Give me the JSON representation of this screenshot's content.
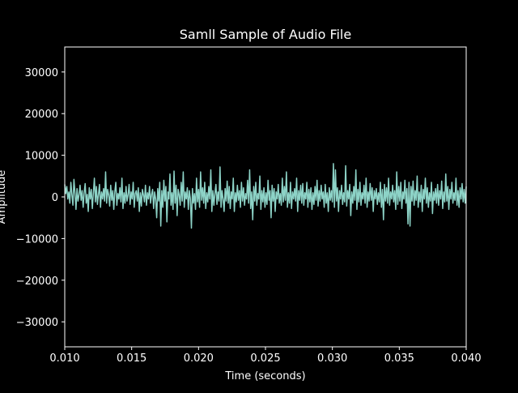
{
  "chart_data": {
    "type": "line",
    "title": "Samll Sample of Audio File",
    "xlabel": "Time (seconds)",
    "ylabel": "Amplitude",
    "xlim": [
      0.01,
      0.04
    ],
    "ylim": [
      -36000,
      36000
    ],
    "x_ticks": [
      0.01,
      0.015,
      0.02,
      0.025,
      0.03,
      0.035,
      0.04
    ],
    "x_tick_labels": [
      "0.010",
      "0.015",
      "0.020",
      "0.025",
      "0.030",
      "0.035",
      "0.040"
    ],
    "y_ticks": [
      30000,
      20000,
      10000,
      0,
      -10000,
      -20000,
      -30000
    ],
    "y_tick_labels": [
      "30000",
      "20000",
      "10000",
      "0",
      "−10000",
      "−20000",
      "−30000"
    ],
    "grid": false,
    "background_color": "#000000",
    "line_color": "#8dd3c7",
    "series": [
      {
        "x_start": 0.01,
        "x_end": 0.04,
        "values": [
          3000,
          800,
          2500,
          -500,
          1200,
          -1500,
          3500,
          500,
          -2000,
          4200,
          1000,
          -3000,
          2000,
          -1000,
          500,
          2800,
          -800,
          1500,
          -2500,
          1000,
          3200,
          -1500,
          600,
          -3500,
          2200,
          -500,
          1800,
          -2800,
          900,
          4500,
          -1200,
          2500,
          -1800,
          600,
          3000,
          -2500,
          1200,
          -500,
          2000,
          -1000,
          6000,
          -1500,
          1800,
          500,
          -2200,
          2800,
          -800,
          1500,
          -3000,
          1200,
          3500,
          -2000,
          800,
          -500,
          2200,
          -1200,
          4500,
          -2800,
          1000,
          -1500,
          2500,
          -1000,
          500,
          3000,
          -1800,
          1200,
          -500,
          3500,
          -2500,
          800,
          1500,
          -1000,
          2200,
          -3500,
          1000,
          -2200,
          1800,
          500,
          -1200,
          2800,
          -2000,
          1000,
          -500,
          2500,
          -1500,
          600,
          1800,
          -2800,
          1200,
          -500,
          -5000,
          2000,
          -1000,
          3500,
          -7000,
          1500,
          -2500,
          4000,
          -1000,
          2500,
          -6000,
          1200,
          -500,
          5500,
          -2000,
          1000,
          -3000,
          6200,
          -1500,
          2800,
          -4500,
          1800,
          500,
          -2000,
          3500,
          -1000,
          6000,
          -2500,
          1200,
          -500,
          2200,
          -3000,
          1500,
          -500,
          -7500,
          2000,
          -1500,
          800,
          -3000,
          4500,
          -1200,
          1800,
          -2500,
          6000,
          -800,
          2200,
          -1500,
          3500,
          -2800,
          1000,
          -1200,
          2500,
          -500,
          6500,
          -3500,
          1500,
          -2000,
          800,
          3000,
          -1800,
          1200,
          -1000,
          7200,
          -2500,
          1500,
          -500,
          -3500,
          2000,
          -1000,
          3800,
          -1500,
          2500,
          -2800,
          1200,
          -500,
          4500,
          -3500,
          1000,
          -1200,
          2800,
          -800,
          1500,
          -2500,
          3500,
          -1000,
          2200,
          -2000,
          800,
          -500,
          4000,
          -1500,
          6500,
          -2800,
          1200,
          -5500,
          2500,
          -1000,
          3500,
          -2000,
          800,
          -500,
          5000,
          -3000,
          1500,
          -1200,
          2200,
          -2500,
          1000,
          -1800,
          4000,
          -800,
          1500,
          -5000,
          2800,
          -1000,
          2000,
          -3500,
          1200,
          -500,
          3000,
          -1500,
          800,
          -2000,
          4500,
          -1200,
          2500,
          -800,
          6000,
          -2500,
          1000,
          -1500,
          3500,
          -2800,
          1200,
          -500,
          2000,
          -1000,
          4500,
          -3500,
          1500,
          -800,
          2800,
          -1500,
          3200,
          -2000,
          1000,
          -500,
          3500,
          -2500,
          1800,
          -1200,
          2200,
          -3000,
          1000,
          -1800,
          2500,
          -800,
          4000,
          -2200,
          1500,
          -1000,
          2800,
          -500,
          1200,
          -2500,
          3000,
          -1500,
          1000,
          -3500,
          2200,
          -800,
          1500,
          -1200,
          8000,
          -2500,
          6500,
          -1000,
          2200,
          -3500,
          1500,
          -500,
          2800,
          -1800,
          1000,
          -1200,
          7500,
          -2200,
          1500,
          -500,
          3000,
          -4500,
          1200,
          -1500,
          2500,
          -800,
          6500,
          -3000,
          1800,
          -1200,
          3500,
          -2000,
          1000,
          -500,
          2800,
          -1500,
          4500,
          -2500,
          1200,
          -1000,
          3200,
          -800,
          2200,
          -3500,
          1500,
          -500,
          2000,
          -1800,
          1000,
          -1200,
          3500,
          -2500,
          1800,
          -5500,
          3000,
          -1000,
          2200,
          -1500,
          4500,
          -2000,
          1200,
          -500,
          2800,
          -1200,
          1500,
          -3000,
          6000,
          -1800,
          2500,
          -1000,
          3500,
          -2800,
          1200,
          -500,
          4000,
          -1500,
          2000,
          -6500,
          3500,
          -7000,
          2500,
          -1000,
          3800,
          -2000,
          1500,
          -800,
          5000,
          -2500,
          1200,
          -1200,
          2800,
          -3500,
          1800,
          -500,
          4500,
          -1500,
          2200,
          -2500,
          1000,
          -1000,
          3500,
          -4000,
          1200,
          -800,
          2000,
          -1500,
          3000,
          -2000,
          1500,
          -500,
          3800,
          -2800,
          1200,
          -1200,
          5500,
          -1000,
          2500,
          -3000,
          1800,
          -500,
          3500,
          -1500,
          1000,
          -800,
          4500,
          -2000,
          1500,
          -2500,
          2200,
          -500,
          3200,
          -1200,
          1800,
          -1500,
          2500
        ]
      }
    ]
  }
}
